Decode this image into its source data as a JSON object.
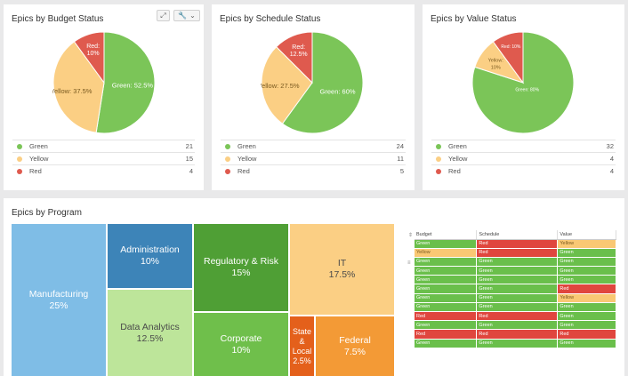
{
  "colors": {
    "green": "#7bc558",
    "yellow": "#fbcf84",
    "red": "#df5a4e"
  },
  "budget_card": {
    "title": "Epics by Budget Status",
    "tools": {
      "expand_icon": "expand-icon",
      "wrench_icon": "wrench-icon",
      "dropdown_icon": "chevron-down-icon"
    },
    "slices": [
      {
        "label": "Green: 52.5%",
        "value": 52.5,
        "color": "#7bc558"
      },
      {
        "label": "Yellow: 37.5%",
        "value": 37.5,
        "color": "#fbcf84"
      },
      {
        "label": "Red: 10%",
        "label_lines": [
          "Red:",
          "10%"
        ],
        "value": 10,
        "color": "#df5a4e"
      }
    ],
    "legend": [
      {
        "label": "Green",
        "count": "21",
        "color": "#7bc558"
      },
      {
        "label": "Yellow",
        "count": "15",
        "color": "#fbcf84"
      },
      {
        "label": "Red",
        "count": "4",
        "color": "#df5a4e"
      }
    ]
  },
  "schedule_card": {
    "title": "Epics by Schedule Status",
    "slices": [
      {
        "label": "Green: 60%",
        "value": 60,
        "color": "#7bc558"
      },
      {
        "label": "Yellow: 27.5%",
        "value": 27.5,
        "color": "#fbcf84"
      },
      {
        "label": "Red: 12.5%",
        "label_lines": [
          "Red:",
          "12.5%"
        ],
        "value": 12.5,
        "color": "#df5a4e"
      }
    ],
    "legend": [
      {
        "label": "Green",
        "count": "24",
        "color": "#7bc558"
      },
      {
        "label": "Yellow",
        "count": "11",
        "color": "#fbcf84"
      },
      {
        "label": "Red",
        "count": "5",
        "color": "#df5a4e"
      }
    ]
  },
  "value_card": {
    "title": "Epics by Value Status",
    "slices": [
      {
        "label": "Green: 80%",
        "value": 80,
        "color": "#7bc558"
      },
      {
        "label": "Yellow: 10%",
        "label_lines": [
          "Yellow:",
          "10%"
        ],
        "value": 10,
        "color": "#fbcf84"
      },
      {
        "label": "Red: 10%",
        "value": 10,
        "color": "#df5a4e"
      }
    ],
    "legend": [
      {
        "label": "Green",
        "count": "32",
        "color": "#7bc558"
      },
      {
        "label": "Yellow",
        "count": "4",
        "color": "#fbcf84"
      },
      {
        "label": "Red",
        "count": "4",
        "color": "#df5a4e"
      }
    ]
  },
  "program_card": {
    "title": "Epics by Program",
    "treemap": [
      {
        "name": "Manufacturing",
        "pct": "25%",
        "color": "#7fbde6"
      },
      {
        "name": "Administration",
        "pct": "10%",
        "color": "#3d84b8"
      },
      {
        "name": "Data Analytics",
        "pct": "12.5%",
        "color": "#bde59a"
      },
      {
        "name": "Regulatory & Risk",
        "pct": "15%",
        "color": "#4f9f35"
      },
      {
        "name": "Corporate",
        "pct": "10%",
        "color": "#6fbf4b"
      },
      {
        "name": "IT",
        "pct": "17.5%",
        "color": "#fbcf84"
      },
      {
        "name": "State & Local",
        "name_lines": [
          "State",
          "&",
          "Local"
        ],
        "pct": "2.5%",
        "color": "#e4601b"
      },
      {
        "name": "Federal",
        "pct": "7.5%",
        "color": "#f39a36"
      }
    ]
  },
  "status_grid": {
    "columns": [
      "Budget",
      "Schedule",
      "Value"
    ],
    "rows": [
      [
        "Green",
        "Red",
        "Yellow"
      ],
      [
        "Yellow",
        "Red",
        "Green"
      ],
      [
        "Green",
        "Green",
        "Green"
      ],
      [
        "Green",
        "Green",
        "Green"
      ],
      [
        "Green",
        "Green",
        "Green"
      ],
      [
        "Green",
        "Green",
        "Red"
      ],
      [
        "Green",
        "Green",
        "Yellow"
      ],
      [
        "Green",
        "Green",
        "Green"
      ],
      [
        "Red",
        "Red",
        "Green"
      ],
      [
        "Green",
        "Green",
        "Green"
      ],
      [
        "Red",
        "Red",
        "Red"
      ],
      [
        "Green",
        "Green",
        "Green"
      ]
    ]
  }
}
